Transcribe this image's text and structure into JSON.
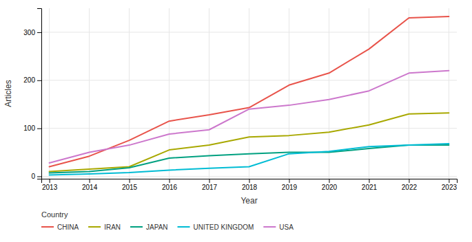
{
  "chart_data": {
    "type": "line",
    "x": [
      2013,
      2014,
      2015,
      2016,
      2017,
      2018,
      2019,
      2020,
      2021,
      2022,
      2023
    ],
    "series": [
      {
        "name": "CHINA",
        "color": "#e8534a",
        "values": [
          20,
          42,
          75,
          115,
          128,
          143,
          190,
          215,
          265,
          330,
          333
        ]
      },
      {
        "name": "IRAN",
        "color": "#a8a800",
        "values": [
          10,
          15,
          20,
          55,
          65,
          82,
          85,
          92,
          107,
          130,
          132
        ]
      },
      {
        "name": "JAPAN",
        "color": "#00a080",
        "values": [
          7,
          10,
          18,
          38,
          43,
          47,
          50,
          50,
          58,
          65,
          65
        ]
      },
      {
        "name": "UNITED KINGDOM",
        "color": "#00bcd4",
        "values": [
          3,
          5,
          8,
          13,
          17,
          20,
          47,
          52,
          62,
          65,
          68
        ]
      },
      {
        "name": "USA",
        "color": "#cc77cc",
        "values": [
          28,
          50,
          65,
          88,
          97,
          140,
          148,
          160,
          178,
          215,
          220
        ]
      }
    ],
    "xlabel": "Year",
    "ylabel": "Articles",
    "legend_title": "Country",
    "xlim": [
      2012.8,
      2023.2
    ],
    "xticks": [
      2013,
      2014,
      2015,
      2016,
      2017,
      2018,
      2019,
      2020,
      2021,
      2022,
      2023
    ],
    "ylim": [
      -5,
      350
    ],
    "yticks": [
      0,
      100,
      200,
      300
    ],
    "grid": true,
    "legend": "bottom-left"
  }
}
